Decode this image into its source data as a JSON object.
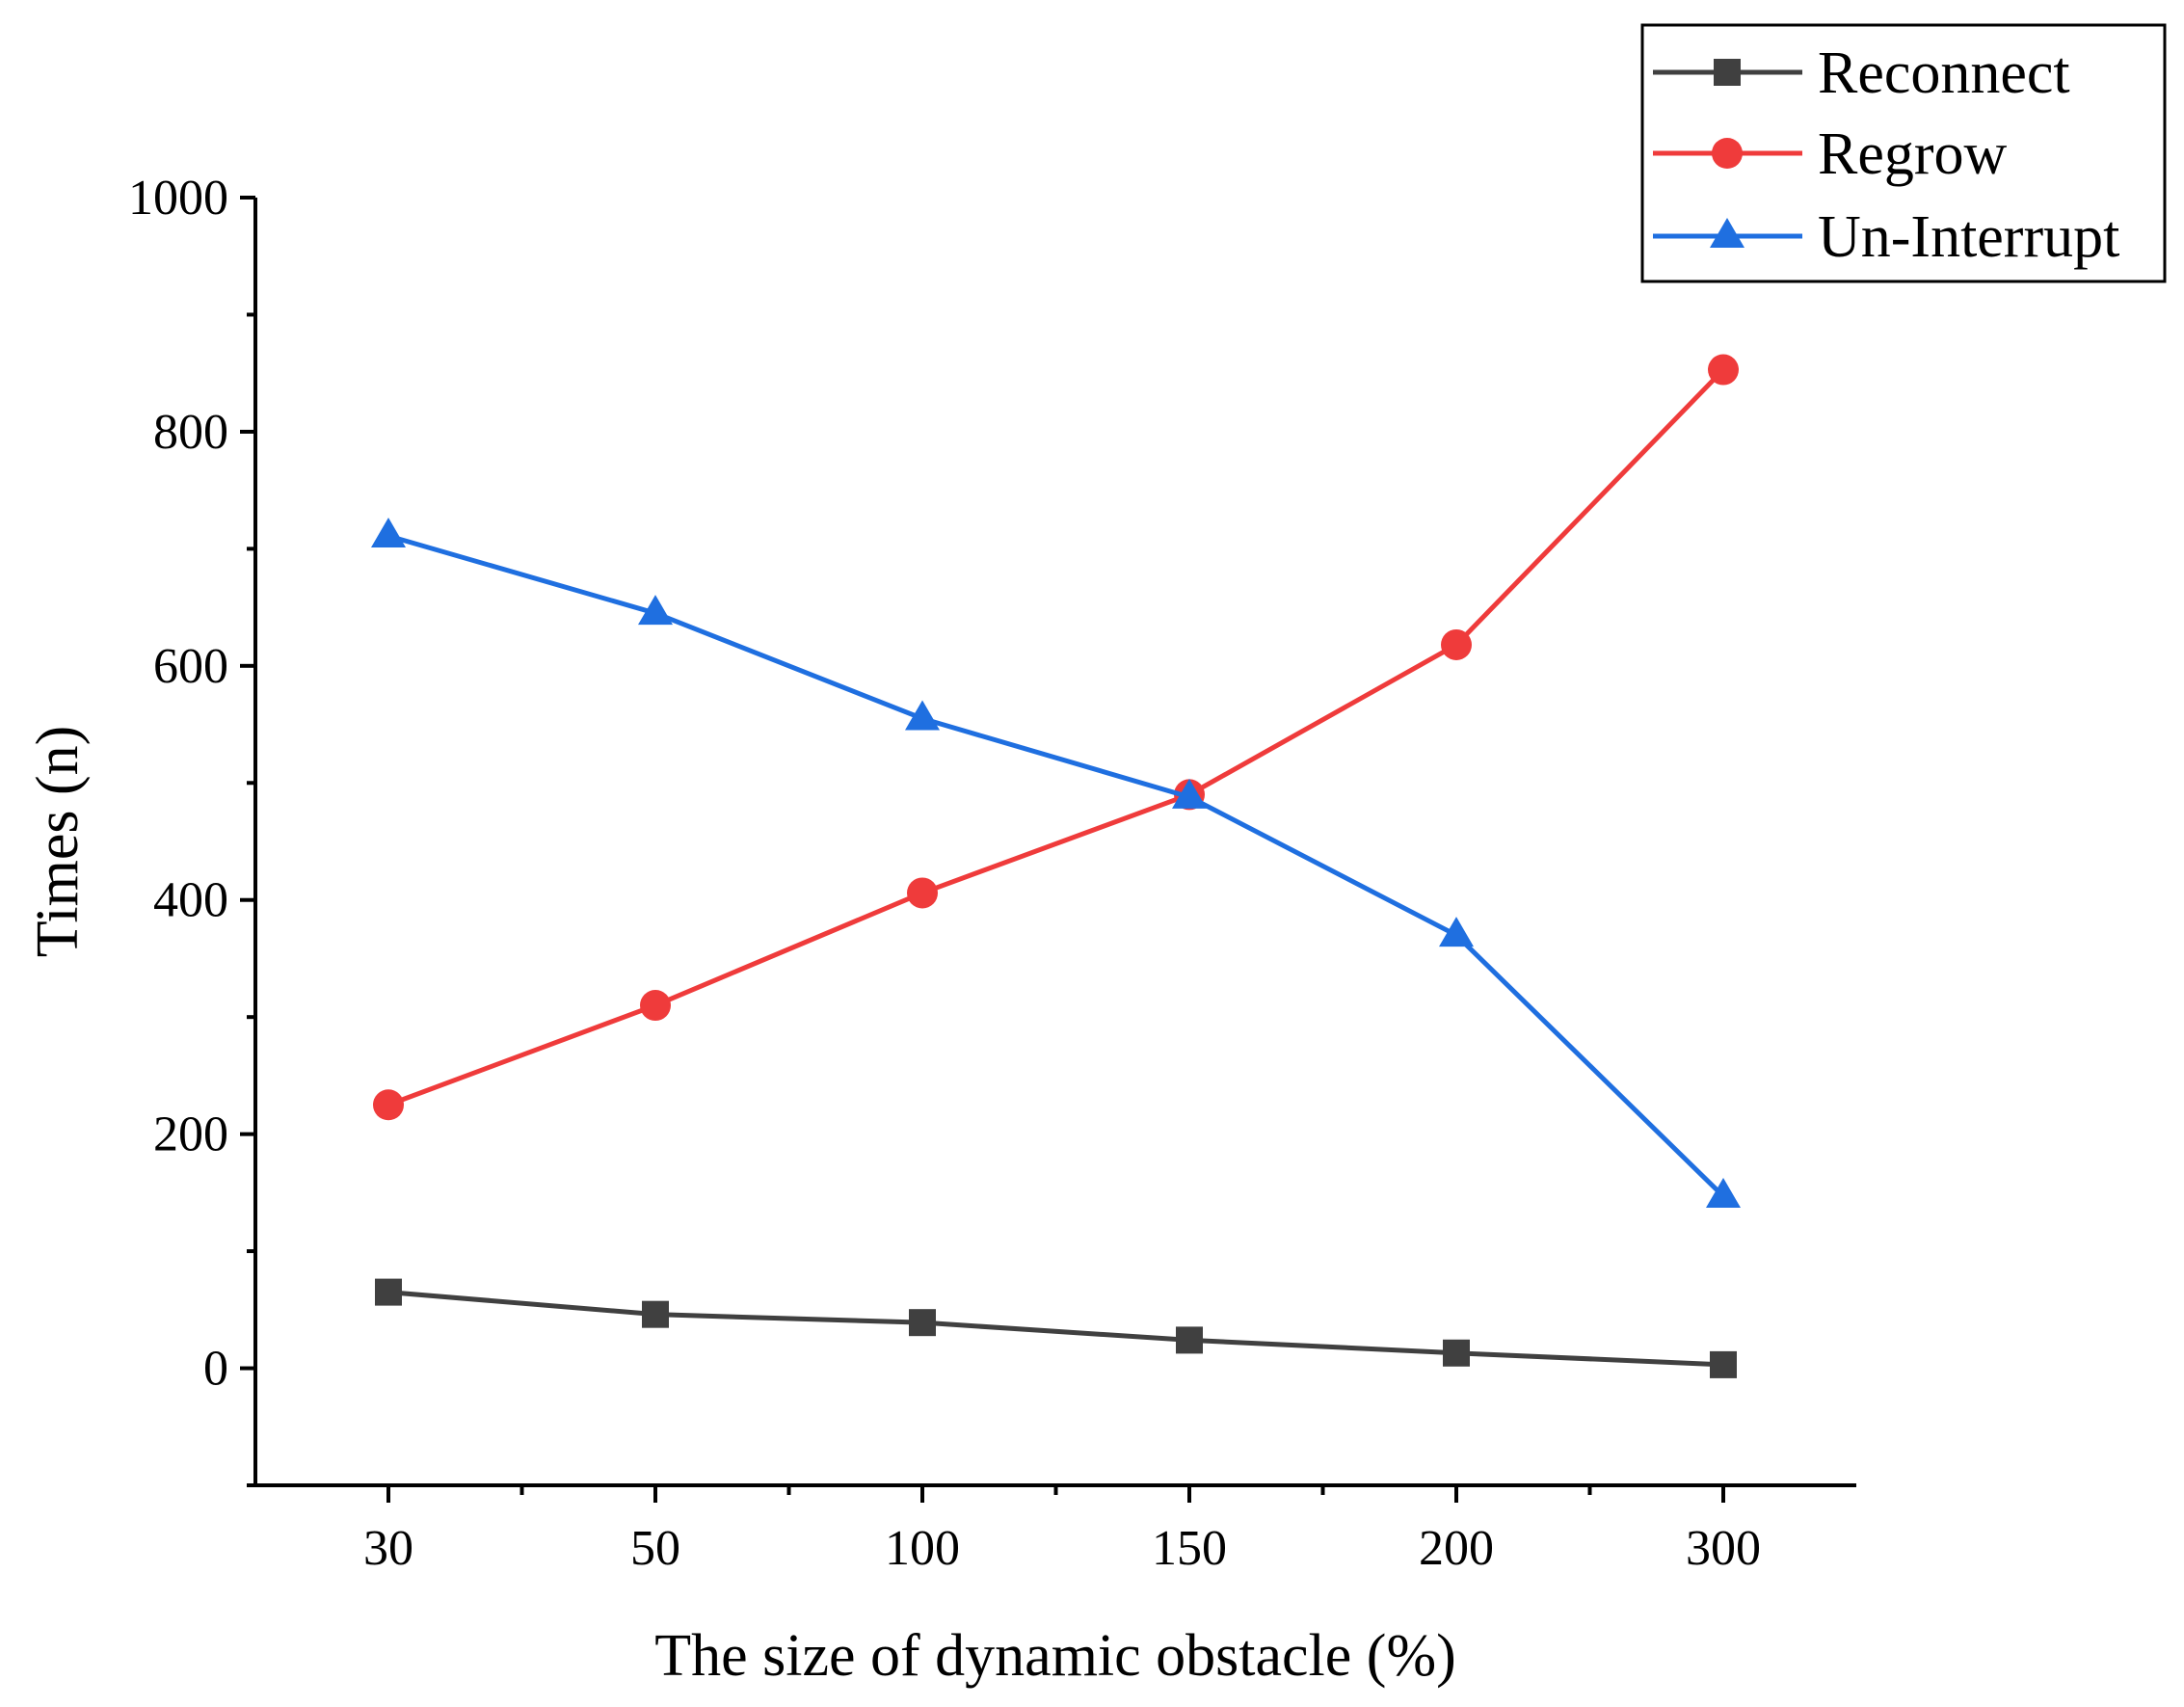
{
  "chart_data": {
    "type": "line",
    "title": "",
    "xlabel": "The size of dynamic obstacle (%)",
    "ylabel": "Times (n)",
    "categories": [
      "30",
      "50",
      "100",
      "150",
      "200",
      "300"
    ],
    "ylim": [
      -100,
      1000
    ],
    "yticks": [
      0,
      200,
      400,
      600,
      800,
      1000
    ],
    "yticks_minor": [
      -100,
      100,
      300,
      500,
      700,
      900
    ],
    "grid": false,
    "legend_position": "top-right",
    "series": [
      {
        "name": "Reconnect",
        "color": "#404040",
        "marker": "square",
        "values": [
          65,
          46,
          39,
          24,
          13,
          3
        ]
      },
      {
        "name": "Regrow",
        "color": "#ef3b3b",
        "marker": "circle",
        "values": [
          225,
          310,
          406,
          490,
          618,
          853
        ]
      },
      {
        "name": "Un-Interrupt",
        "color": "#1f6fe0",
        "marker": "triangle",
        "values": [
          711,
          645,
          555,
          488,
          370,
          147
        ]
      }
    ]
  }
}
